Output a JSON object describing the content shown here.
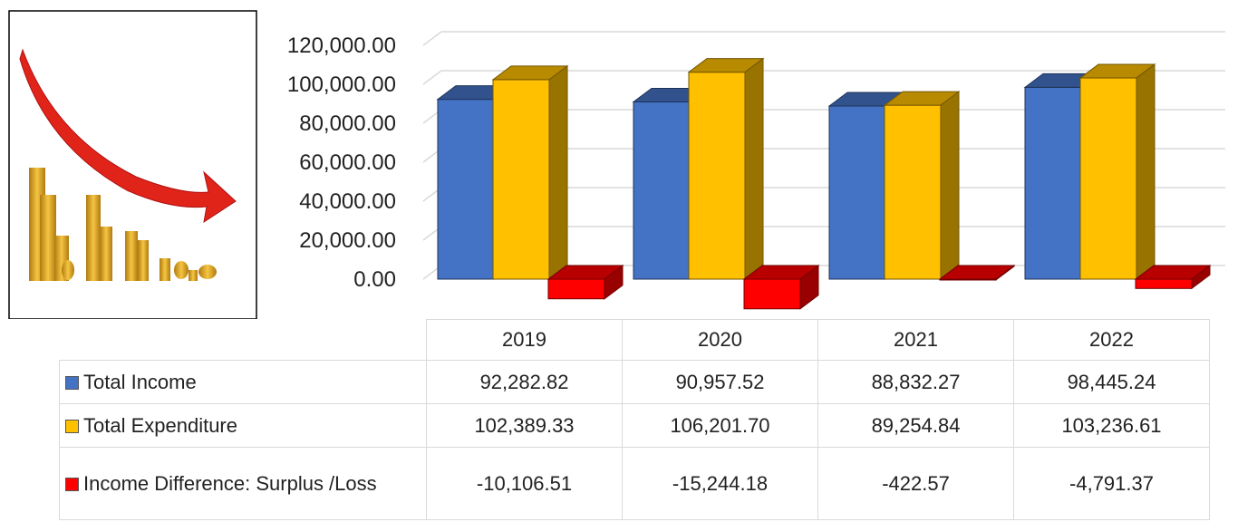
{
  "chart_data": {
    "type": "bar3d",
    "categories": [
      "2019",
      "2020",
      "2021",
      "2022"
    ],
    "series": [
      {
        "name": "Total Income",
        "color": "#4472c4",
        "values": [
          92282.82,
          90957.52,
          88832.27,
          98445.24
        ],
        "value_labels": [
          "92,282.82",
          "90,957.52",
          "88,832.27",
          "98,445.24"
        ]
      },
      {
        "name": "Total Expenditure",
        "color": "#ffc000",
        "values": [
          102389.33,
          106201.7,
          89254.84,
          103236.61
        ],
        "value_labels": [
          "102,389.33",
          "106,201.70",
          "89,254.84",
          "103,236.61"
        ]
      },
      {
        "name": "Income Difference: Surplus /Loss",
        "color": "#ff0000",
        "values": [
          -10106.51,
          -15244.18,
          -422.57,
          -4791.37
        ],
        "value_labels": [
          "-10,106.51",
          "-15,244.18",
          "-422.57",
          "-4,791.37"
        ]
      }
    ],
    "ylim": [
      -20000,
      120000
    ],
    "yticks": [
      {
        "value": 0,
        "label": "0.00"
      },
      {
        "value": 20000,
        "label": "20,000.00"
      },
      {
        "value": 40000,
        "label": "40,000.00"
      },
      {
        "value": 60000,
        "label": "60,000.00"
      },
      {
        "value": 80000,
        "label": "80,000.00"
      },
      {
        "value": 100000,
        "label": "100,000.00"
      },
      {
        "value": 120000,
        "label": "120,000.00"
      }
    ],
    "grid": true
  }
}
